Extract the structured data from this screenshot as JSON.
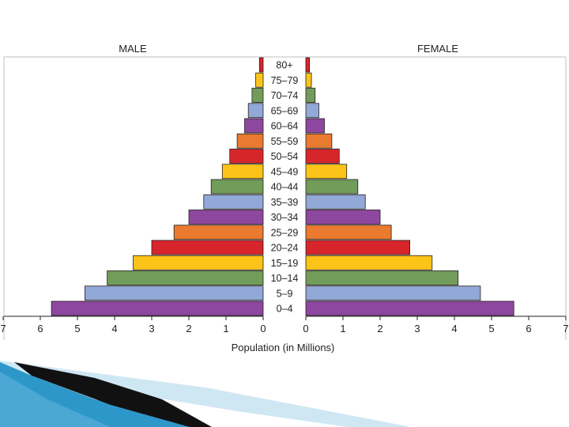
{
  "chart_data": {
    "type": "bar",
    "orientation": "horizontal",
    "layout": "population-pyramid",
    "categories": [
      "80+",
      "75–79",
      "70–74",
      "65–69",
      "60–64",
      "55–59",
      "50–54",
      "45–49",
      "40–44",
      "35–39",
      "30–34",
      "25–29",
      "20–24",
      "15–19",
      "10–14",
      "5–9",
      "0–4"
    ],
    "series": [
      {
        "name": "MALE",
        "side": "left",
        "values": [
          0.1,
          0.2,
          0.3,
          0.4,
          0.5,
          0.7,
          0.9,
          1.1,
          1.4,
          1.6,
          2.0,
          2.4,
          3.0,
          3.5,
          4.2,
          4.8,
          5.7
        ]
      },
      {
        "name": "FEMALE",
        "side": "right",
        "values": [
          0.1,
          0.15,
          0.25,
          0.35,
          0.5,
          0.7,
          0.9,
          1.1,
          1.4,
          1.6,
          2.0,
          2.3,
          2.8,
          3.4,
          4.1,
          4.7,
          5.6
        ]
      }
    ],
    "bar_colors": [
      "#d7262b",
      "#fcc418",
      "#719c5a",
      "#92a8d6",
      "#8e479f",
      "#ea7a2f",
      "#d7262b",
      "#fcc418",
      "#719c5a",
      "#92a8d6",
      "#8e479f",
      "#ea7a2f",
      "#d7262b",
      "#fcc418",
      "#719c5a",
      "#92a8d6",
      "#8e479f"
    ],
    "xlabel": "Population (in Millions)",
    "xlim": [
      0,
      7
    ],
    "ticks": [
      "7",
      "6",
      "5",
      "4",
      "3",
      "2",
      "1",
      "0"
    ],
    "ticks_right": [
      "0",
      "1",
      "2",
      "3",
      "4",
      "5",
      "6",
      "7"
    ],
    "title": "",
    "grid": false
  },
  "colors": {
    "axis": "#231f20",
    "frame": "#bfbfbf",
    "decor_dark": "#111111",
    "decor_blue": "#2e97c9",
    "decor_light": "#a8d4ea"
  }
}
